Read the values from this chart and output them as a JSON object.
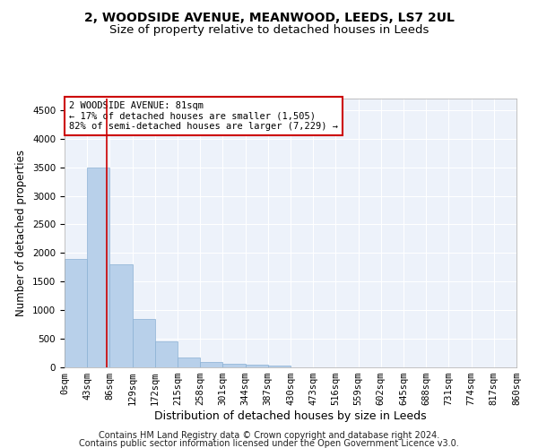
{
  "title1": "2, WOODSIDE AVENUE, MEANWOOD, LEEDS, LS7 2UL",
  "title2": "Size of property relative to detached houses in Leeds",
  "xlabel": "Distribution of detached houses by size in Leeds",
  "ylabel": "Number of detached properties",
  "bar_color": "#b8d0ea",
  "bar_edge_color": "#8ab0d4",
  "property_line_color": "#cc0000",
  "annotation_text": "2 WOODSIDE AVENUE: 81sqm\n← 17% of detached houses are smaller (1,505)\n82% of semi-detached houses are larger (7,229) →",
  "annotation_box_edgecolor": "#cc0000",
  "bin_labels": [
    "0sqm",
    "43sqm",
    "86sqm",
    "129sqm",
    "172sqm",
    "215sqm",
    "258sqm",
    "301sqm",
    "344sqm",
    "387sqm",
    "430sqm",
    "473sqm",
    "516sqm",
    "559sqm",
    "602sqm",
    "645sqm",
    "688sqm",
    "731sqm",
    "774sqm",
    "817sqm",
    "860sqm"
  ],
  "bar_values": [
    1900,
    3500,
    1800,
    850,
    450,
    175,
    100,
    60,
    40,
    30,
    5,
    0,
    0,
    0,
    0,
    0,
    0,
    0,
    0,
    0
  ],
  "ylim": [
    0,
    4700
  ],
  "yticks": [
    0,
    500,
    1000,
    1500,
    2000,
    2500,
    3000,
    3500,
    4000,
    4500
  ],
  "background_color": "#edf2fa",
  "grid_color": "#ffffff",
  "footer_line1": "Contains HM Land Registry data © Crown copyright and database right 2024.",
  "footer_line2": "Contains public sector information licensed under the Open Government Licence v3.0.",
  "title1_fontsize": 10,
  "title2_fontsize": 9.5,
  "xlabel_fontsize": 9,
  "ylabel_fontsize": 8.5,
  "tick_fontsize": 7.5,
  "annotation_fontsize": 7.5,
  "footer_fontsize": 7
}
